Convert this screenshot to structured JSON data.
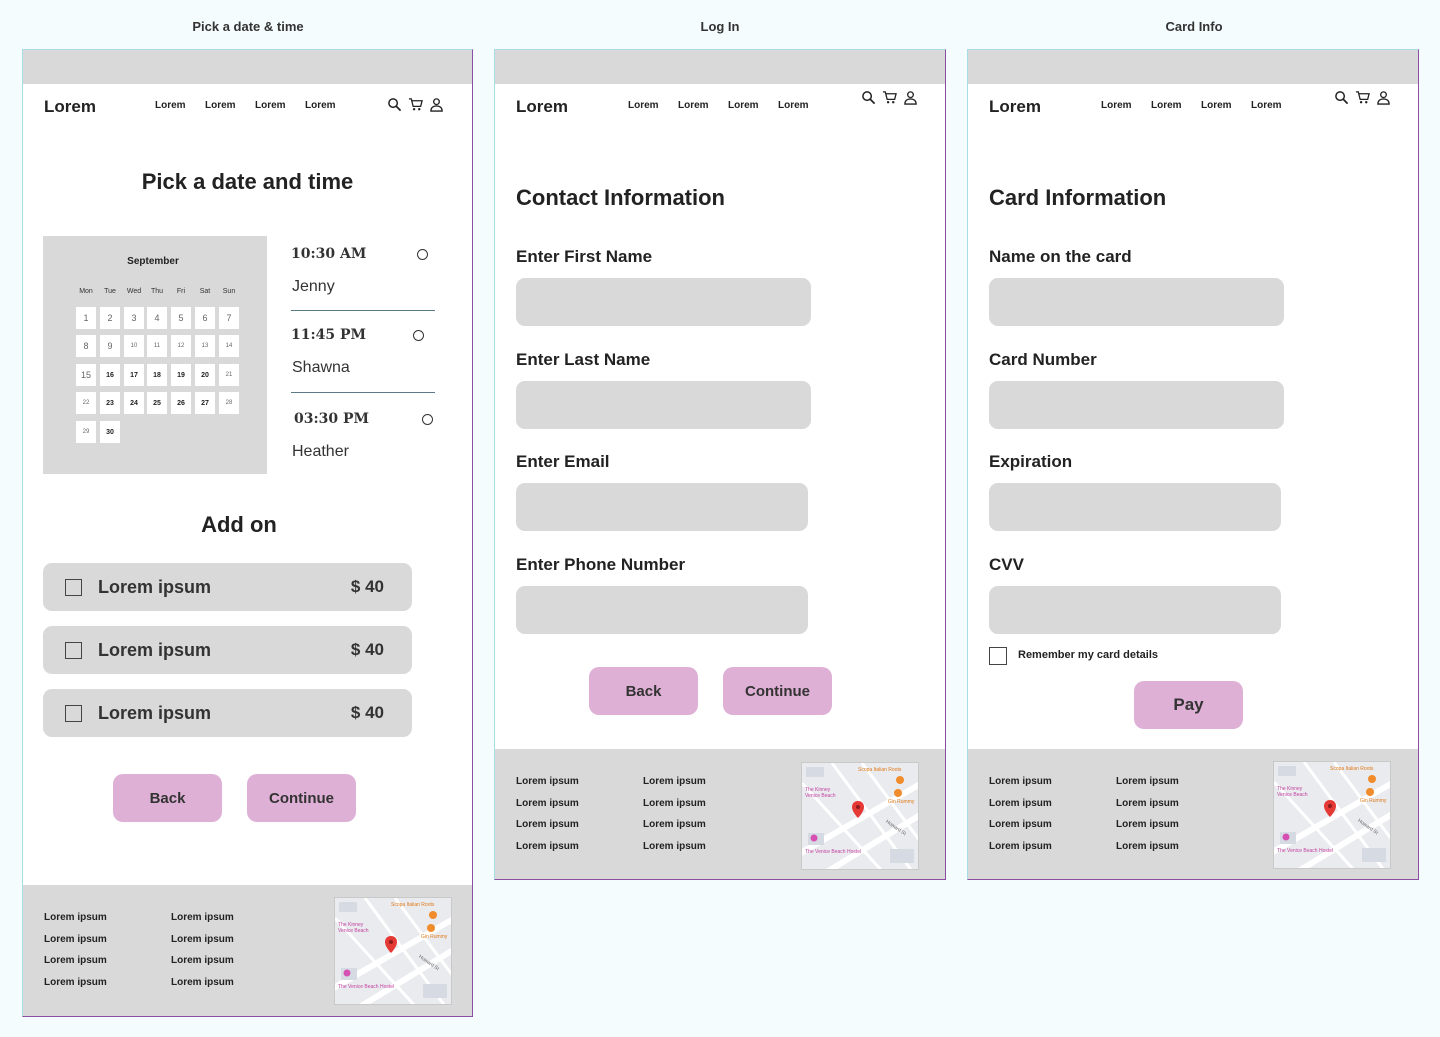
{
  "labels": {
    "date_time": "Pick a date & time",
    "login": "Log In",
    "card": "Card Info"
  },
  "header": {
    "logo": "Lorem",
    "nav": [
      "Lorem",
      "Lorem",
      "Lorem",
      "Lorem"
    ],
    "icons": [
      "search-icon",
      "cart-icon",
      "user-icon"
    ]
  },
  "date_page": {
    "title": "Pick a date and time",
    "calendar": {
      "month": "September",
      "dow": [
        "Mon",
        "Tue",
        "Wed",
        "Thu",
        "Fri",
        "Sat",
        "Sun"
      ],
      "rows": [
        [
          "1",
          "2",
          "3",
          "4",
          "5",
          "6",
          "7"
        ],
        [
          "8",
          "9",
          "10",
          "11",
          "12",
          "13",
          "14"
        ],
        [
          "15",
          "16",
          "17",
          "18",
          "19",
          "20",
          "21"
        ],
        [
          "22",
          "23",
          "24",
          "25",
          "26",
          "27",
          "28"
        ],
        [
          "29",
          "30"
        ]
      ]
    },
    "slots": [
      {
        "time": "10:30 AM",
        "name": "Jenny"
      },
      {
        "time": "11:45 PM",
        "name": "Shawna"
      },
      {
        "time": "03:30 PM",
        "name": "Heather"
      }
    ],
    "addon_title": "Add on",
    "addons": [
      {
        "name": "Lorem ipsum",
        "price": "$ 40"
      },
      {
        "name": "Lorem ipsum",
        "price": "$ 40"
      },
      {
        "name": "Lorem ipsum",
        "price": "$ 40"
      }
    ],
    "back": "Back",
    "continue": "Continue"
  },
  "login_page": {
    "title": "Contact Information",
    "fields": [
      "Enter First Name",
      "Enter Last Name",
      "Enter Email",
      "Enter Phone Number"
    ],
    "back": "Back",
    "continue": "Continue"
  },
  "card_page": {
    "title": "Card Information",
    "fields": [
      "Name on the card",
      "Card Number",
      "Expiration",
      "CVV"
    ],
    "remember": "Remember my card details",
    "pay": "Pay"
  },
  "footer": {
    "col1": [
      "Lorem ipsum",
      "Lorem ipsum",
      "Lorem ipsum",
      "Lorem ipsum"
    ],
    "col2": [
      "Lorem ipsum",
      "Lorem ipsum",
      "Lorem ipsum",
      "Lorem ipsum"
    ],
    "map": {
      "places": [
        "Scopa Italian Roots",
        "The Kinney Venice Beach",
        "Gin Rummy",
        "The Venice Beach Hostel"
      ],
      "streets": [
        "Howard St"
      ]
    }
  },
  "colors": {
    "accent_button": "#dfb0d6",
    "panel_gray": "#d9d9d9",
    "background": "#f5fcfd",
    "map_pin": "#e53935"
  }
}
